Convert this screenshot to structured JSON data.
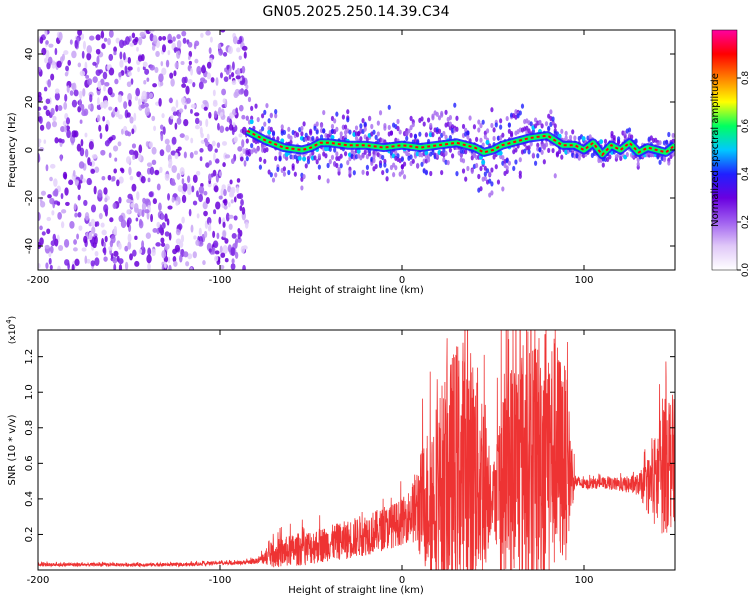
{
  "figure": {
    "title": "GN05.2025.250.14.39.C34"
  },
  "chart_data": [
    {
      "type": "heatmap",
      "xlabel": "Height of straight line (km)",
      "ylabel": "Frequency (Hz)",
      "xlim": [
        -200,
        150
      ],
      "ylim": [
        -50,
        50
      ],
      "xticks": [
        -200,
        -100,
        0,
        100
      ],
      "yticks": [
        -40,
        -20,
        0,
        20,
        40
      ],
      "grid": false,
      "colorbar": {
        "label": "Normalized spectral amplitude",
        "range": [
          0,
          1
        ],
        "ticks": [
          "0.0",
          "0.2",
          "0.4",
          "0.6",
          "0.8"
        ],
        "colors": [
          "#ffffff",
          "#e0c8f8",
          "#a060f0",
          "#6a00e0",
          "#2020ff",
          "#00c8ff",
          "#00ff60",
          "#ffff00",
          "#ff8000",
          "#ff0000",
          "#ff00a0"
        ]
      },
      "noise_region": {
        "x": [
          -200,
          -85
        ]
      },
      "ridge": {
        "x": [
          -85,
          -75,
          -65,
          -55,
          -50,
          -45,
          -40,
          -30,
          -20,
          -10,
          0,
          10,
          20,
          30,
          40,
          45,
          50,
          55,
          60,
          70,
          80,
          88,
          95,
          100,
          105,
          110,
          115,
          120,
          125,
          130,
          135,
          140,
          145,
          150
        ],
        "y": [
          8,
          4,
          1,
          0,
          1,
          3,
          3,
          2,
          2,
          1,
          2,
          1,
          2,
          3,
          1,
          -1,
          0,
          2,
          3,
          5,
          6,
          2,
          2,
          0,
          3,
          -2,
          2,
          0,
          3,
          -1,
          1,
          0,
          -1,
          2
        ]
      }
    },
    {
      "type": "line",
      "xlabel": "Height of straight line (km)",
      "ylabel": "SNR (10 * v/v)",
      "yscale_label": "(x10",
      "yscale_exponent": "4",
      "xlim": [
        -200,
        150
      ],
      "ylim": [
        0,
        13500
      ],
      "xticks": [
        -200,
        -100,
        0,
        100
      ],
      "yticks": [
        "0.2",
        "0.4",
        "0.6",
        "0.8",
        "1.0",
        "1.2"
      ],
      "ytick_values": [
        2000,
        4000,
        6000,
        8000,
        10000,
        12000
      ],
      "line_color": "#ee3333",
      "series": [
        {
          "x": [
            -200,
            -180,
            -160,
            -140,
            -120,
            -100,
            -90,
            -80,
            -75,
            -70,
            -60,
            -50,
            -40,
            -30,
            -20,
            -10,
            0,
            5,
            10,
            15,
            20,
            25,
            30,
            35,
            40,
            45,
            50,
            55,
            60,
            65,
            70,
            75,
            80,
            85,
            90,
            95,
            100,
            110,
            120,
            130,
            135,
            140,
            145,
            150
          ],
          "mean": [
            300,
            300,
            300,
            300,
            300,
            400,
            400,
            500,
            700,
            900,
            1100,
            1300,
            1500,
            1700,
            2000,
            2300,
            2700,
            3200,
            3600,
            4000,
            4500,
            5000,
            5500,
            5800,
            5500,
            5000,
            4300,
            4800,
            5500,
            6000,
            6300,
            6500,
            6700,
            6500,
            6000,
            5000,
            4800,
            4900,
            4800,
            4800,
            4700,
            5000,
            6500,
            6000
          ],
          "amp": [
            100,
            100,
            100,
            100,
            100,
            100,
            100,
            150,
            400,
            800,
            900,
            1000,
            1000,
            1100,
            1200,
            1200,
            1300,
            1500,
            3000,
            4500,
            5500,
            6500,
            7500,
            7500,
            6500,
            5500,
            1500,
            6000,
            6500,
            7000,
            7500,
            7500,
            7500,
            6500,
            5500,
            400,
            300,
            300,
            400,
            600,
            1500,
            3000,
            4500,
            3500
          ]
        }
      ]
    }
  ]
}
